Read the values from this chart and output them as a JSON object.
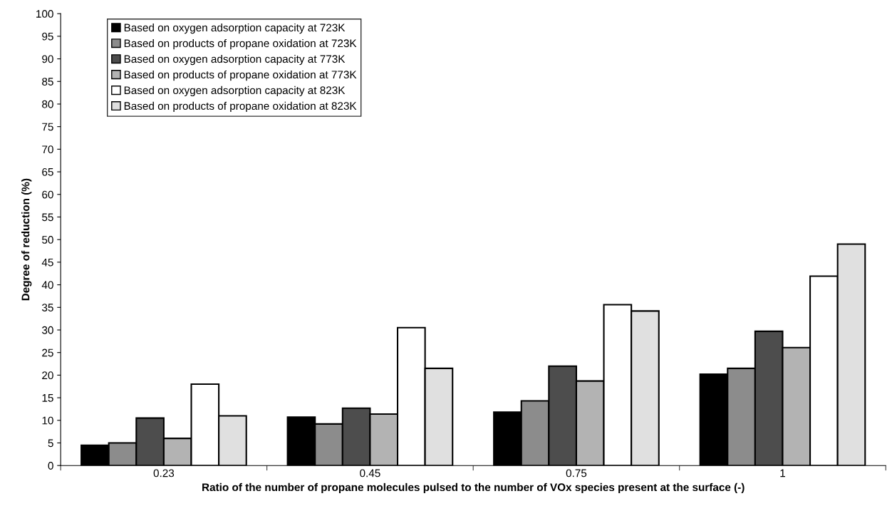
{
  "chart_data": {
    "type": "bar",
    "xlabel": "Ratio of the number of propane molecules pulsed to the number of VOx species present at the surface (-)",
    "ylabel": "Degree of reduction (%)",
    "categories": [
      "0.23",
      "0.45",
      "0.75",
      "1"
    ],
    "series": [
      {
        "name": "Based on oxygen adsorption capacity at 723K",
        "color": "#000000",
        "values": [
          4.5,
          10.7,
          11.8,
          20.2
        ]
      },
      {
        "name": "Based on products of propane oxidation at 723K",
        "color": "#8c8c8c",
        "values": [
          5,
          9.2,
          14.3,
          21.5
        ]
      },
      {
        "name": "Based on oxygen adsorption capacity at 773K",
        "color": "#4d4d4d",
        "values": [
          10.5,
          12.7,
          22,
          29.7
        ]
      },
      {
        "name": "Based on products of propane oxidation at 773K",
        "color": "#b3b3b3",
        "values": [
          6,
          11.4,
          18.7,
          26.1
        ]
      },
      {
        "name": "Based on oxygen adsorption capacity at 823K",
        "color": "#ffffff",
        "values": [
          18,
          30.5,
          35.6,
          41.9
        ]
      },
      {
        "name": "Based on products of propane oxidation at 823K",
        "color": "#e0e0e0",
        "values": [
          11,
          21.5,
          34.2,
          49
        ]
      }
    ],
    "ylim": [
      0,
      100
    ],
    "yticks": [
      0,
      5,
      10,
      15,
      20,
      25,
      30,
      35,
      40,
      45,
      50,
      55,
      60,
      65,
      70,
      75,
      80,
      85,
      90,
      95,
      100
    ],
    "grid": false,
    "legend": "top left"
  }
}
